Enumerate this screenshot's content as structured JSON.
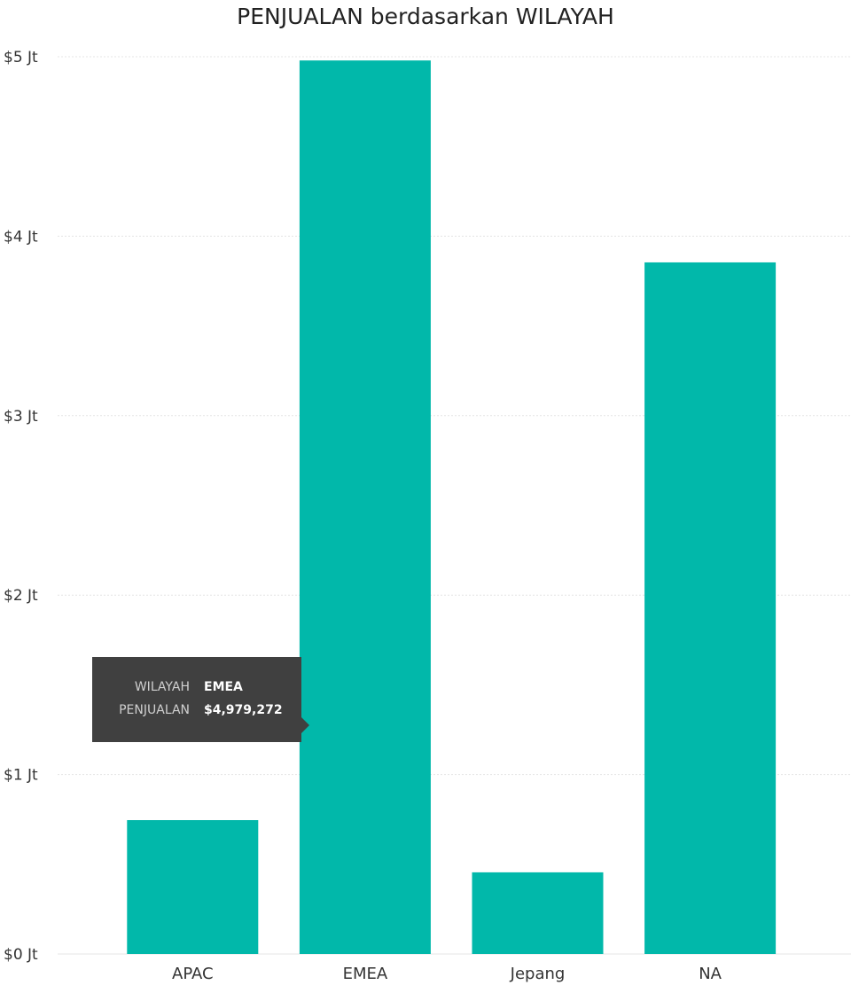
{
  "chart_data": {
    "type": "bar",
    "title": "PENJUALAN berdasarkan WILAYAH",
    "xlabel": "",
    "ylabel": "",
    "categories": [
      "APAC",
      "EMEA",
      "Jepang",
      "NA"
    ],
    "values": [
      746000,
      4979272,
      455000,
      3854000
    ],
    "ylim": [
      0,
      5000000
    ],
    "yticks": [
      0,
      1000000,
      2000000,
      3000000,
      4000000,
      5000000
    ],
    "ytick_labels": [
      "$0 Jt",
      "$1 Jt",
      "$2 Jt",
      "$3 Jt",
      "$4 Jt",
      "$5 Jt"
    ],
    "grid": true,
    "bar_color": "#01B8AA",
    "tooltip": {
      "rows": [
        {
          "label": "WILAYAH",
          "value": "EMEA"
        },
        {
          "label": "PENJUALAN",
          "value": "$4,979,272"
        }
      ]
    }
  }
}
